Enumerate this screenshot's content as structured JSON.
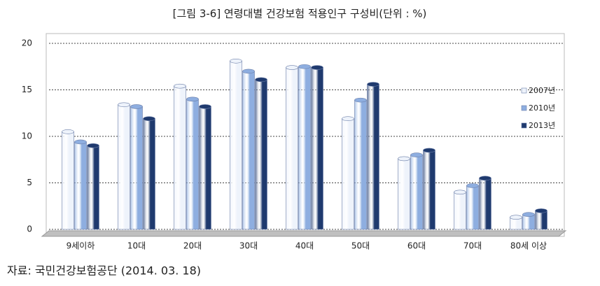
{
  "chart_data": {
    "type": "bar",
    "title": "[그림 3-6] 연령대별 건강보험 적용인구 구성비(단위 : %)",
    "note": "자료: 국민건강보험공단 (2014. 03. 18)",
    "categories": [
      "9세이하",
      "10대",
      "20대",
      "30대",
      "40대",
      "50대",
      "60대",
      "70대",
      "80세 이상"
    ],
    "series": [
      {
        "name": "2007년",
        "color": "#eef3fb",
        "values": [
          10.5,
          13.4,
          15.4,
          18.1,
          17.4,
          11.9,
          7.6,
          4.0,
          1.3
        ]
      },
      {
        "name": "2010년",
        "color": "#8eaee0",
        "values": [
          9.4,
          13.2,
          14.0,
          17.0,
          17.5,
          13.9,
          8.0,
          4.7,
          1.6
        ]
      },
      {
        "name": "2013년",
        "color": "#1f3a6e",
        "values": [
          9.0,
          11.9,
          13.2,
          16.1,
          17.4,
          15.6,
          8.5,
          5.5,
          2.0
        ]
      }
    ],
    "ylim": [
      0,
      20
    ],
    "yticks": [
      0,
      5,
      10,
      15,
      20
    ],
    "grid": true,
    "legend": "right"
  }
}
